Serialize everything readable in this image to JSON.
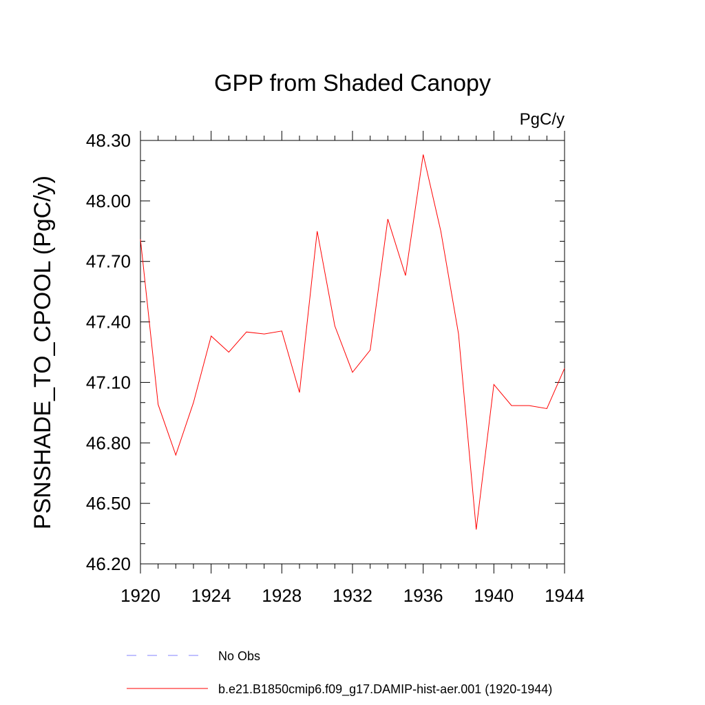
{
  "chart_data": {
    "type": "line",
    "title": "GPP from Shaded Canopy",
    "units_label": "PgC/y",
    "xlabel": "",
    "ylabel": "PSNSHADE_TO_CPOOL  (PgC/y)",
    "xlim": [
      1920,
      1944
    ],
    "ylim": [
      46.2,
      48.3
    ],
    "x_ticks": [
      "1920",
      "1924",
      "1928",
      "1932",
      "1936",
      "1940",
      "1944"
    ],
    "y_ticks": [
      "46.20",
      "46.50",
      "46.80",
      "47.10",
      "47.40",
      "47.70",
      "48.00",
      "48.30"
    ],
    "x": [
      1920,
      1921,
      1922,
      1923,
      1924,
      1925,
      1926,
      1927,
      1928,
      1929,
      1930,
      1931,
      1932,
      1933,
      1934,
      1935,
      1936,
      1937,
      1938,
      1939,
      1940,
      1941,
      1942,
      1943,
      1944
    ],
    "series": [
      {
        "name": "b.e21.B1850cmip6.f09_g17.DAMIP-hist-aer.001 (1920-1944)",
        "color": "#ff0000",
        "style": "solid",
        "values": [
          47.81,
          46.99,
          46.74,
          47.0,
          47.33,
          47.25,
          47.35,
          47.34,
          47.355,
          47.05,
          47.85,
          47.38,
          47.15,
          47.26,
          47.91,
          47.63,
          48.23,
          47.85,
          47.34,
          46.37,
          47.09,
          46.985,
          46.985,
          46.97,
          47.17
        ]
      }
    ],
    "legend": [
      {
        "label": "No Obs",
        "color": "#8080ff",
        "style": "dashed"
      },
      {
        "label": "b.e21.B1850cmip6.f09_g17.DAMIP-hist-aer.001 (1920-1944)",
        "color": "#ff0000",
        "style": "solid"
      }
    ],
    "grid": false,
    "legend_position": "bottom"
  }
}
